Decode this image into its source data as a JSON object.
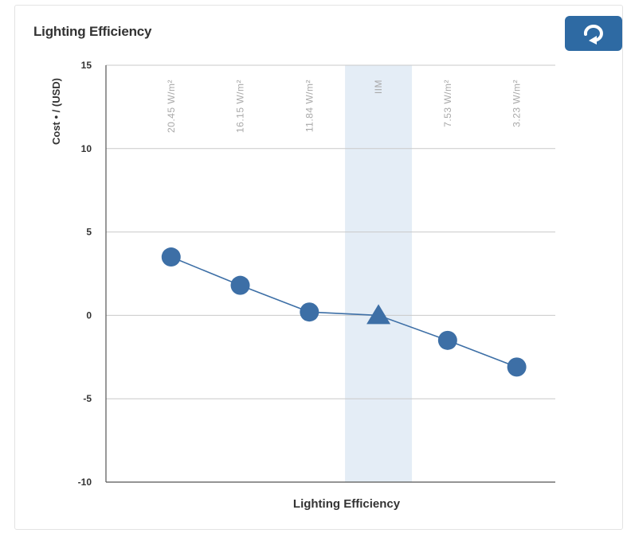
{
  "card": {
    "title": "Lighting Efficiency",
    "reset_icon": "undo-arrow-icon"
  },
  "colors": {
    "accent": "#2e6aa3",
    "marker": "#3d6fa6",
    "highlight_band": "#e4edf6",
    "grid": "#c9c9c9"
  },
  "chart_data": {
    "type": "line",
    "title": "Lighting Efficiency",
    "xlabel": "Lighting Efficiency",
    "ylabel": "Cost • / (USD)",
    "ylim": [
      -10,
      15
    ],
    "yticks": [
      15,
      10,
      5,
      0,
      -5,
      -10
    ],
    "grid": true,
    "categories": [
      "20.45 W/m²",
      "16.15 W/m²",
      "11.84 W/m²",
      "IIM",
      "7.53 W/m²",
      "3.23 W/m²"
    ],
    "highlight_category": "IIM",
    "series": [
      {
        "values": [
          3.5,
          1.8,
          0.2,
          0,
          -1.5,
          -3.1
        ],
        "markers": [
          "circle",
          "circle",
          "circle",
          "triangle",
          "circle",
          "circle"
        ]
      }
    ]
  }
}
